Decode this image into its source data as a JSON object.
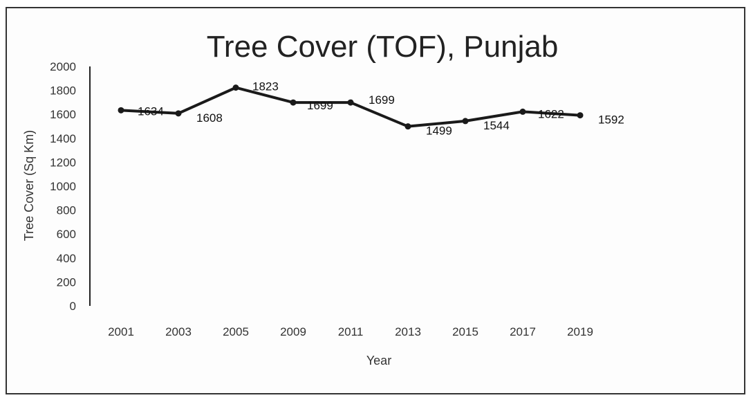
{
  "chart_data": {
    "type": "line",
    "title": "Tree Cover (TOF), Punjab",
    "xlabel": "Year",
    "ylabel": "Tree Cover (Sq Km)",
    "categories": [
      "2001",
      "2003",
      "2005",
      "2009",
      "2011",
      "2013",
      "2015",
      "2017",
      "2019"
    ],
    "series": [
      {
        "values": [
          1634,
          1608,
          1823,
          1699,
          1699,
          1499,
          1544,
          1622,
          1592
        ]
      }
    ],
    "data_labels": [
      "1634",
      "1608",
      "1823",
      "1699",
      "1699",
      "1499",
      "1544",
      "1622",
      "1592"
    ],
    "y_ticks": [
      "0",
      "200",
      "400",
      "600",
      "800",
      "1000",
      "1200",
      "1400",
      "1600",
      "1800",
      "2000"
    ],
    "ylim": [
      0,
      2000
    ],
    "grid": false,
    "legend": "none",
    "line_color": "#1a1a1a"
  }
}
